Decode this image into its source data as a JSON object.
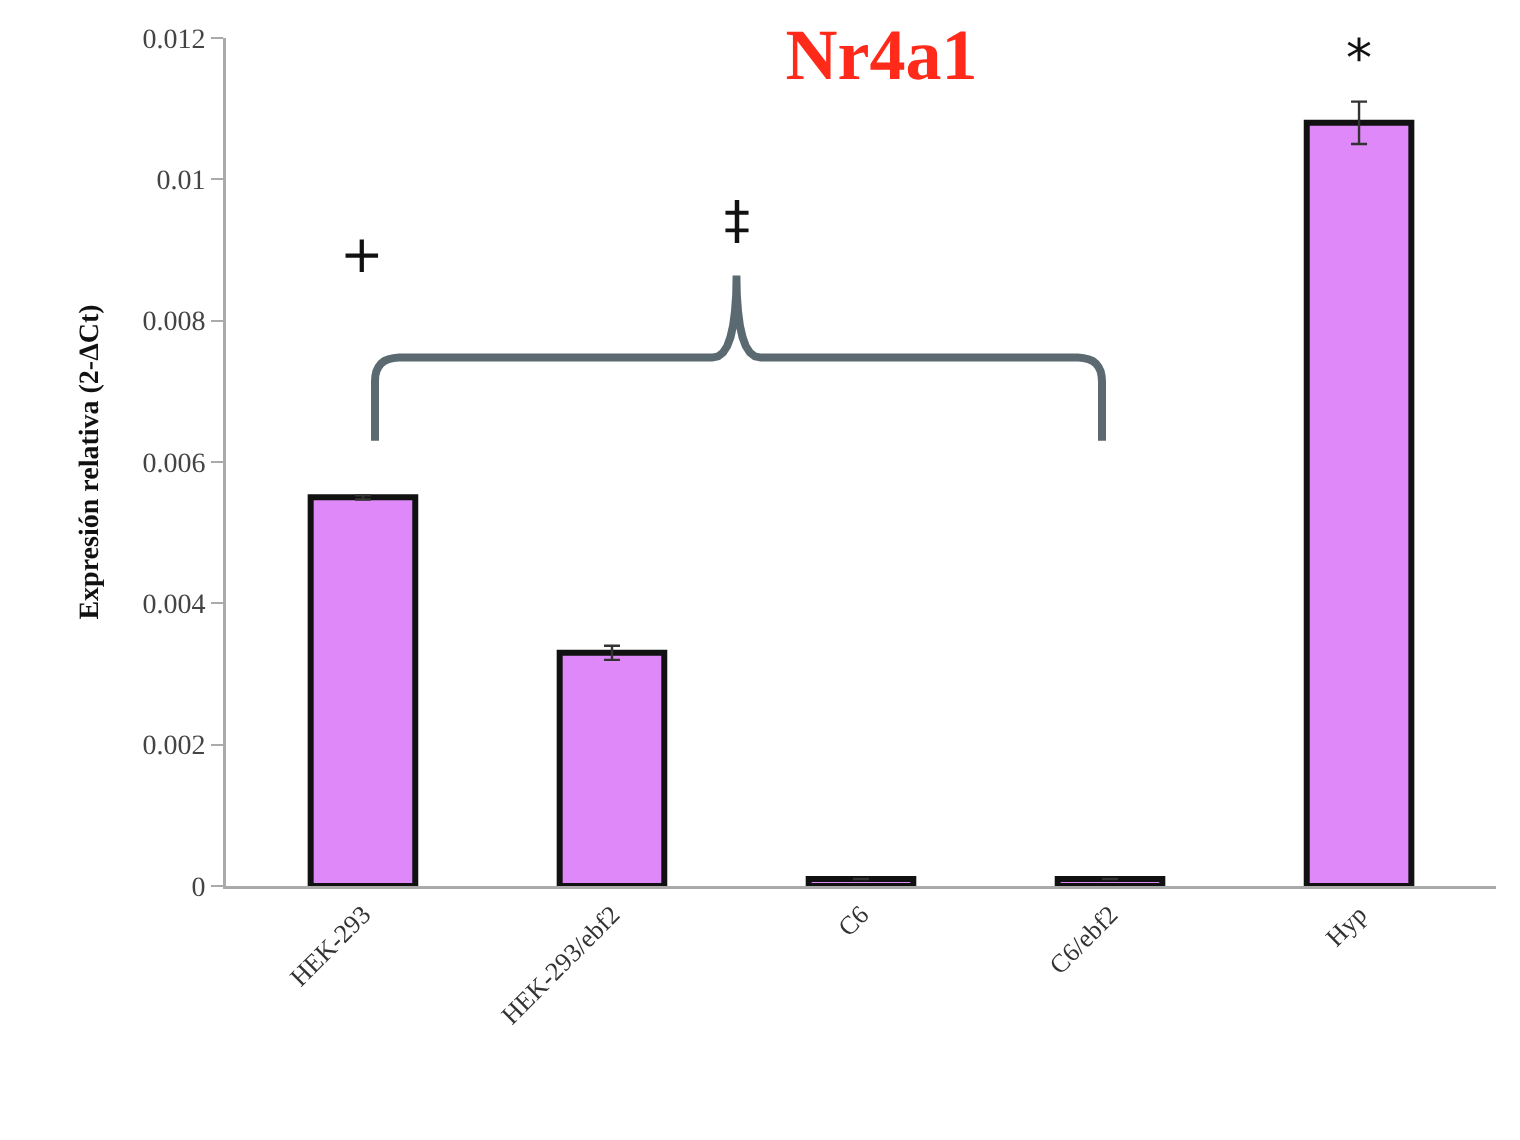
{
  "chart_data": {
    "type": "bar",
    "title": "Nr4a1",
    "ylabel": "Expresión relativa (2-ΔCt)",
    "categories": [
      "HEK-293",
      "HEK-293/ebf2",
      "C6",
      "C6/ebf2",
      "Hyp"
    ],
    "values": [
      0.0055,
      0.0033,
      0.0001,
      0.0001,
      0.0108
    ],
    "errors": [
      3e-05,
      0.0001,
      null,
      null,
      0.0003
    ],
    "color": "#df88f9",
    "ylim": [
      0,
      0.012
    ],
    "yticks": [
      {
        "value": 0,
        "label": "0"
      },
      0.002,
      0.004,
      0.006,
      0.008,
      0.01,
      0.012
    ],
    "grid": false,
    "annotations": [
      "+",
      "‡",
      "*"
    ]
  }
}
